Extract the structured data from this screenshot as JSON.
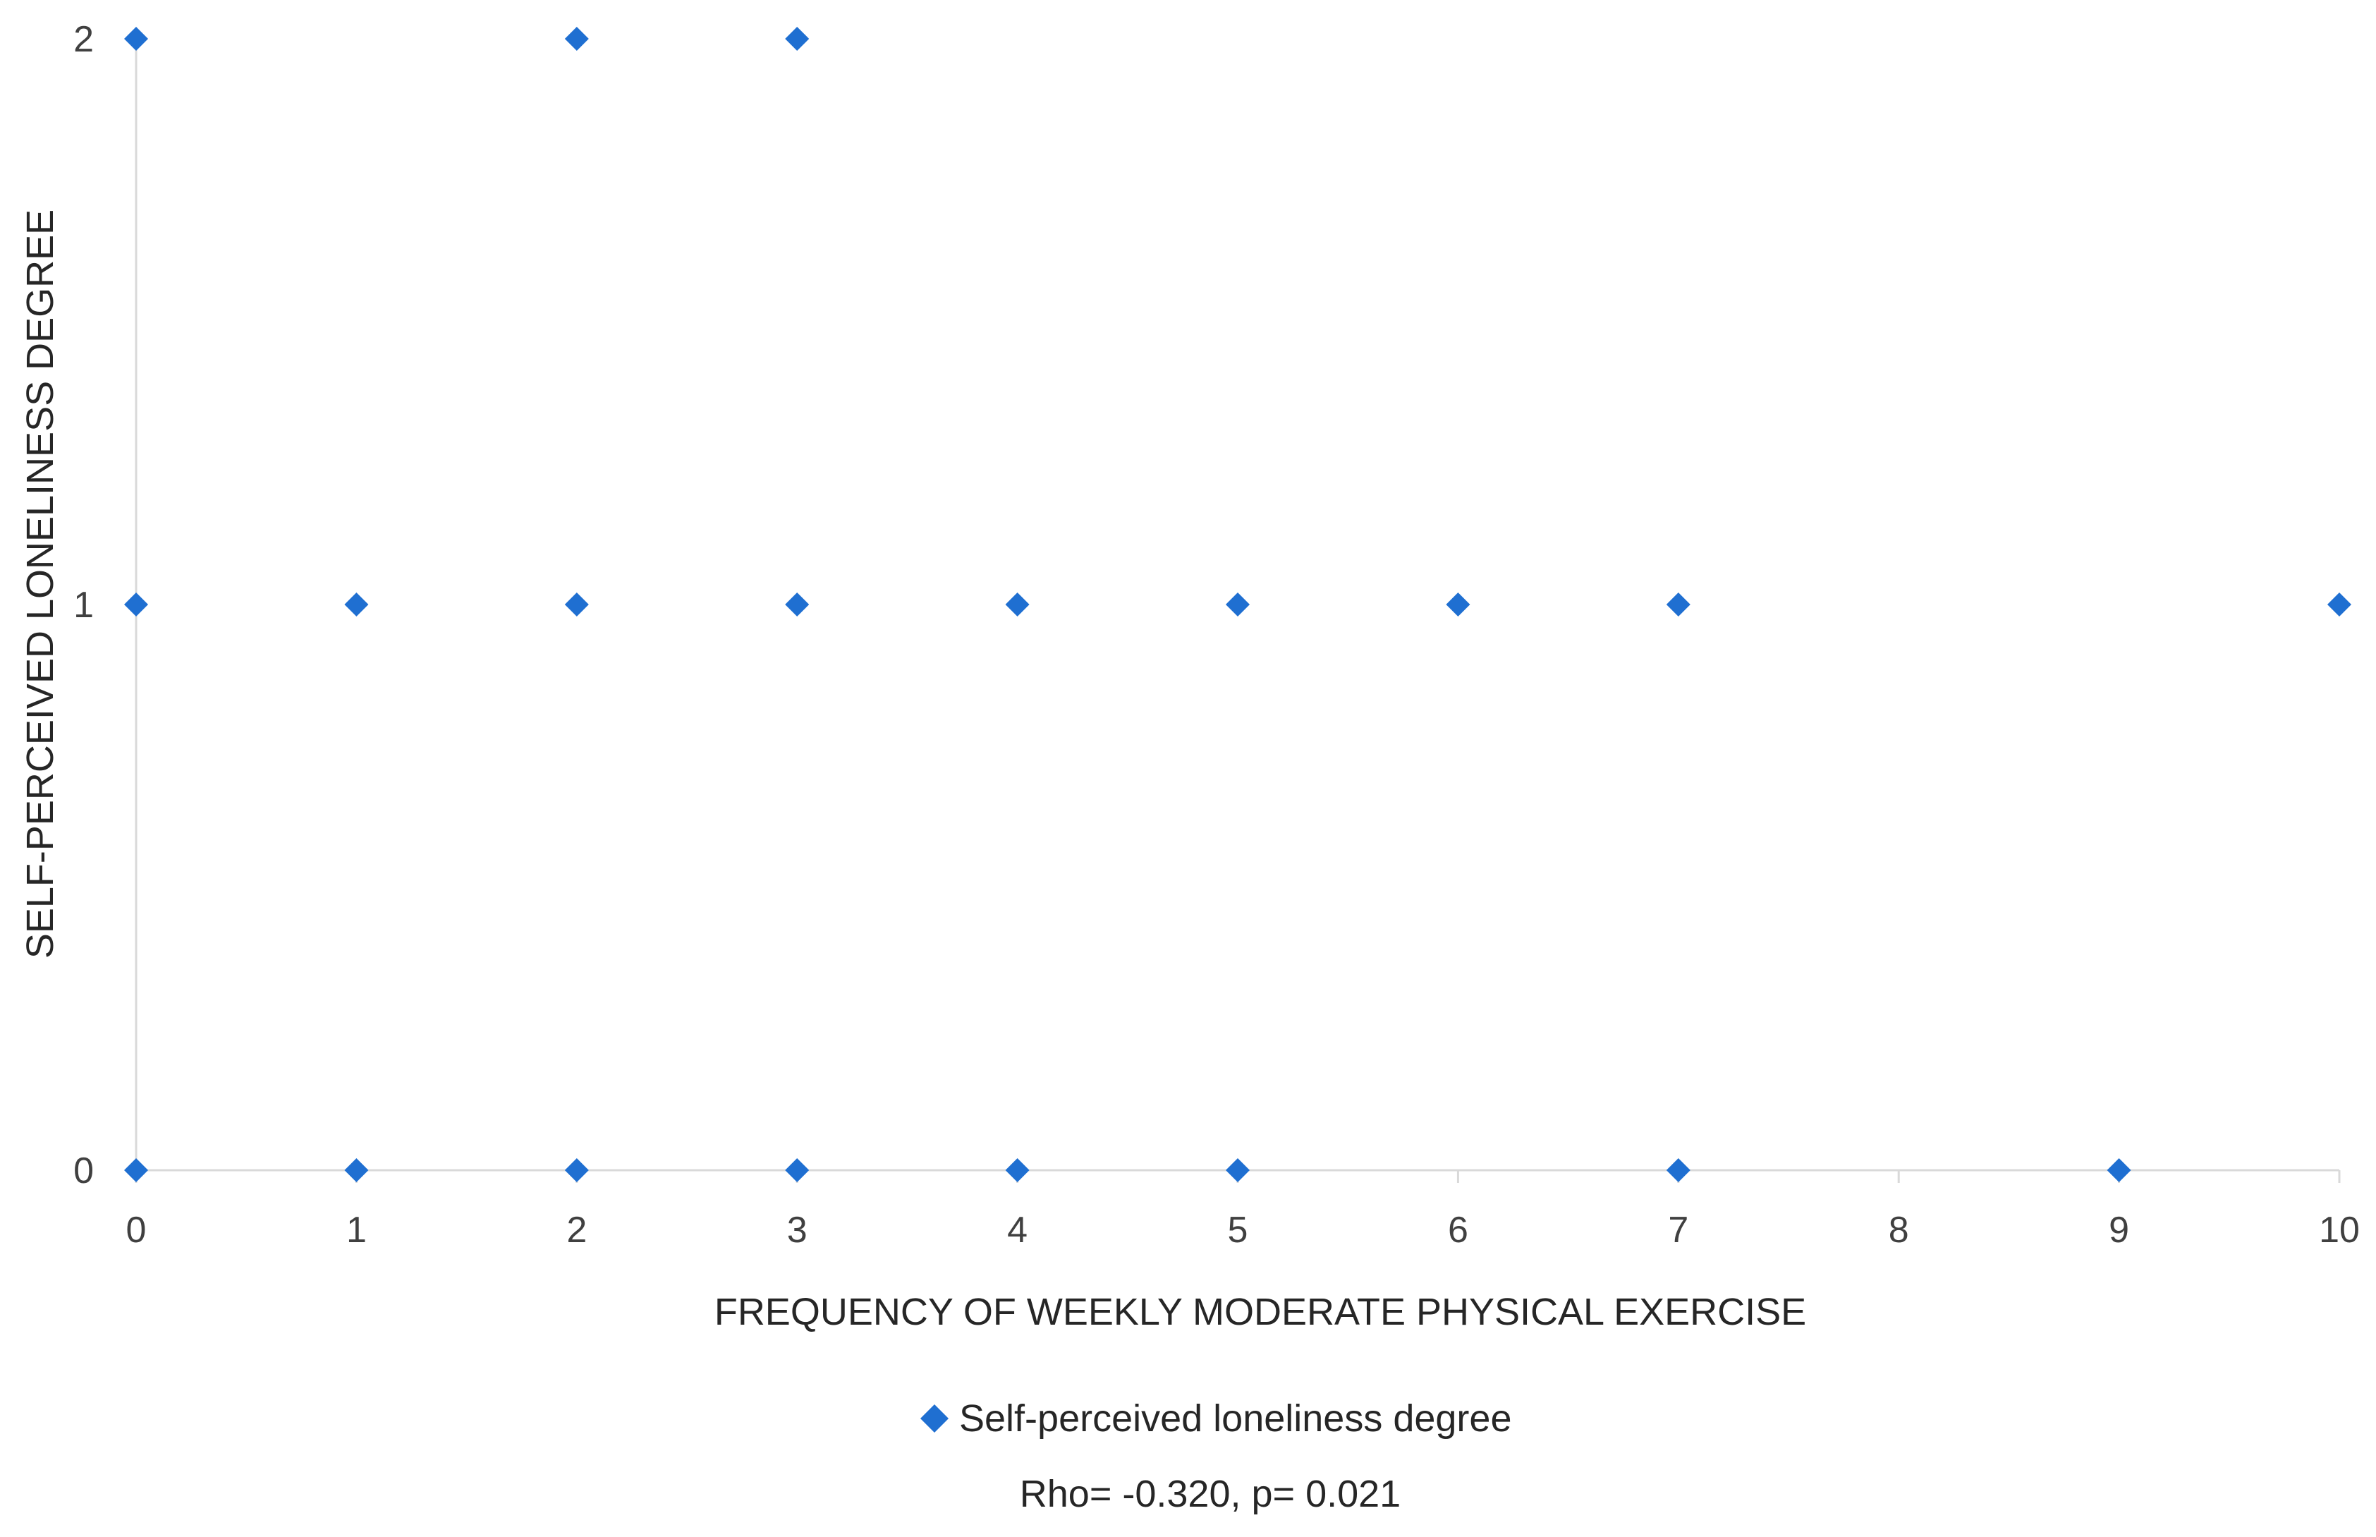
{
  "chart_data": {
    "type": "scatter",
    "title": "",
    "xlabel": "FREQUENCY OF WEEKLY MODERATE PHYSICAL EXERCISE",
    "ylabel": "SELF-PERCEIVED LONELINESS  DEGREE",
    "xlim": [
      0,
      10
    ],
    "ylim": [
      0,
      2
    ],
    "x_ticks": [
      "0",
      "1",
      "2",
      "3",
      "4",
      "5",
      "6",
      "7",
      "8",
      "9",
      "10"
    ],
    "y_ticks": [
      "0",
      "1",
      "2"
    ],
    "grid": false,
    "legend_position": "bottom",
    "series": [
      {
        "name": "Self-perceived loneliness degree",
        "color": "#1f6fd1",
        "marker": "diamond",
        "points": [
          {
            "x": 0,
            "y": 2
          },
          {
            "x": 2,
            "y": 2
          },
          {
            "x": 3,
            "y": 2
          },
          {
            "x": 0,
            "y": 1
          },
          {
            "x": 1,
            "y": 1
          },
          {
            "x": 2,
            "y": 1
          },
          {
            "x": 3,
            "y": 1
          },
          {
            "x": 4,
            "y": 1
          },
          {
            "x": 5,
            "y": 1
          },
          {
            "x": 6,
            "y": 1
          },
          {
            "x": 7,
            "y": 1
          },
          {
            "x": 10,
            "y": 1
          },
          {
            "x": 0,
            "y": 0
          },
          {
            "x": 1,
            "y": 0
          },
          {
            "x": 2,
            "y": 0
          },
          {
            "x": 3,
            "y": 0
          },
          {
            "x": 4,
            "y": 0
          },
          {
            "x": 5,
            "y": 0
          },
          {
            "x": 7,
            "y": 0
          },
          {
            "x": 9,
            "y": 0
          }
        ]
      }
    ],
    "annotation": "Rho= -0.320, p= 0.021"
  }
}
